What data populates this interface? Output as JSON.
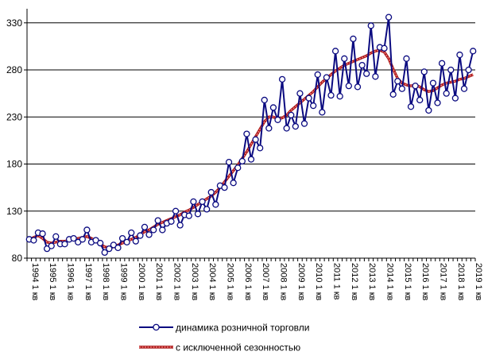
{
  "chart_data": {
    "type": "line",
    "title": "",
    "xlabel": "",
    "ylabel": "",
    "ylim": [
      80,
      345
    ],
    "yticks": [
      80,
      130,
      180,
      230,
      280,
      330
    ],
    "grid": true,
    "legend_position": "bottom",
    "xtick_labels": [
      "1994 1 кв",
      "1995 1 кв",
      "1996 1 кв",
      "1997 1 кв",
      "1998 1 кв",
      "1999 1 кв",
      "2000 1 кв",
      "2001 1 кв",
      "2002 1 кв",
      "2003 1 кв",
      "2004 1 кв",
      "2005 1 кв",
      "2006 1 кв",
      "2007 1 кв",
      "2008 1 кв",
      "2009 1 кв",
      "2010 1 кв",
      "2011 1 кв",
      "2012 1 кв",
      "2013 1 кв",
      "2014 1 кв",
      "2015 1 кв",
      "2016 1 кв",
      "2017 1 кв",
      "2018 1 кв",
      "2019 1 кв"
    ],
    "series": [
      {
        "name": "динамика розничной торговли",
        "color": "#0a0a80",
        "marker": "circle",
        "values": [
          100,
          99,
          107,
          106,
          90,
          93,
          103,
          95,
          95,
          100,
          101,
          97,
          100,
          110,
          97,
          99,
          96,
          86,
          90,
          94,
          91,
          101,
          97,
          107,
          98,
          104,
          113,
          105,
          110,
          120,
          110,
          117,
          119,
          130,
          115,
          126,
          125,
          140,
          127,
          140,
          132,
          150,
          137,
          157,
          155,
          182,
          160,
          176,
          183,
          212,
          185,
          206,
          197,
          248,
          218,
          240,
          227,
          270,
          218,
          232,
          220,
          255,
          223,
          250,
          242,
          275,
          235,
          272,
          253,
          300,
          252,
          292,
          263,
          313,
          262,
          285,
          276,
          327,
          273,
          304,
          303,
          336,
          254,
          268,
          260,
          292,
          241,
          263,
          248,
          278,
          237,
          266,
          245,
          287,
          255,
          280,
          250,
          296,
          260,
          280,
          300
        ]
      },
      {
        "name": "с исключенной сезонностью",
        "color": "#ff2020",
        "values": [
          100,
          102,
          104,
          101,
          97,
          96,
          97,
          98,
          98,
          99,
          100,
          101,
          102,
          103,
          101,
          98,
          95,
          92,
          91,
          92,
          94,
          96,
          98,
          100,
          102,
          105,
          108,
          110,
          113,
          116,
          118,
          120,
          122,
          124,
          126,
          129,
          131,
          134,
          137,
          140,
          143,
          146,
          150,
          155,
          161,
          167,
          173,
          179,
          186,
          193,
          201,
          209,
          217,
          225,
          230,
          230,
          228,
          229,
          232,
          237,
          241,
          245,
          249,
          253,
          257,
          262,
          267,
          271,
          275,
          279,
          282,
          285,
          287,
          289,
          291,
          293,
          295,
          298,
          300,
          301,
          299,
          292,
          281,
          271,
          266,
          264,
          263,
          264,
          262,
          259,
          257,
          258,
          261,
          264,
          266,
          267,
          268,
          270,
          271,
          273,
          275
        ]
      }
    ]
  },
  "legend": {
    "items": [
      {
        "label": "динамика розничной торговли",
        "color": "#0a0a80"
      },
      {
        "label": "с исключенной сезонностью",
        "color": "#ff2020"
      }
    ]
  }
}
